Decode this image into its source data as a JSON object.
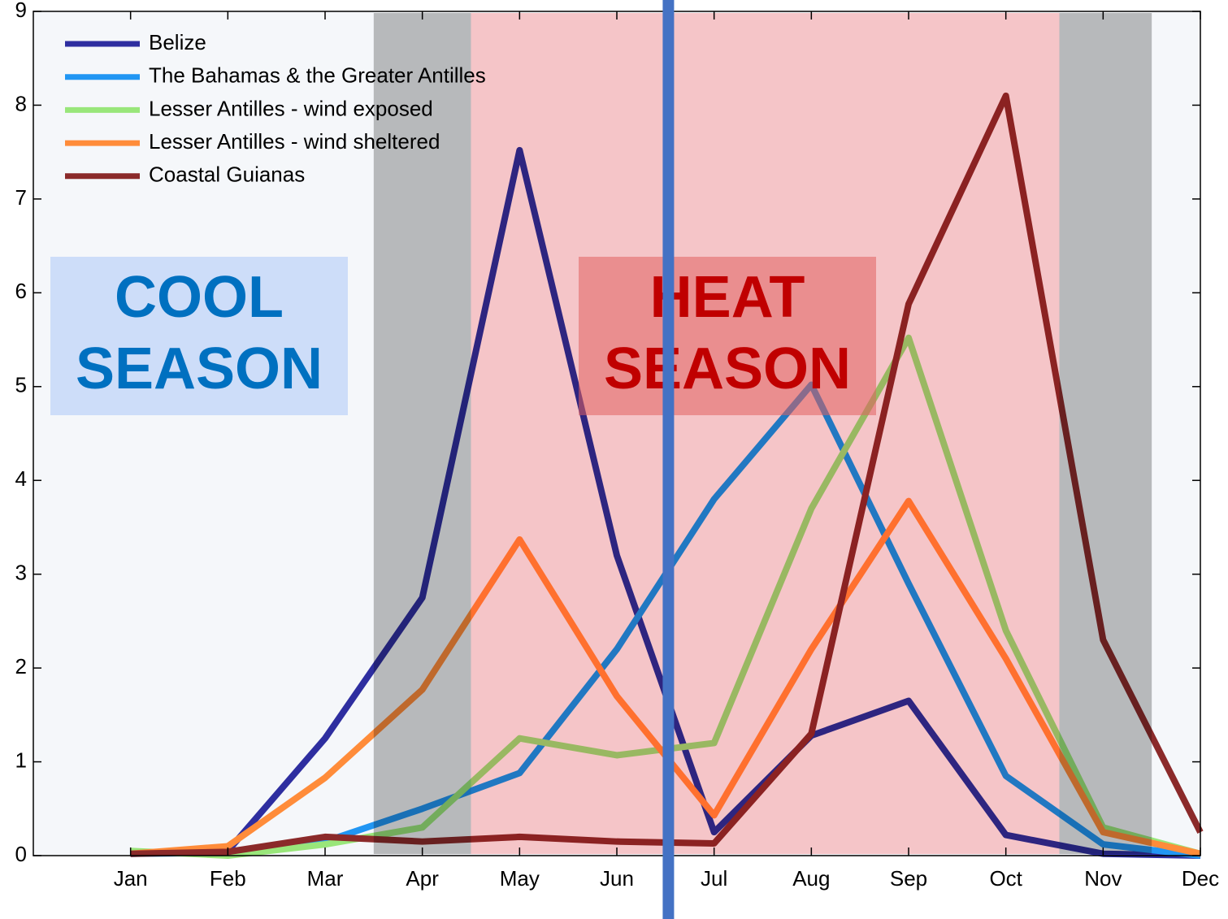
{
  "chart_data": {
    "type": "line",
    "categories": [
      "Jan",
      "Feb",
      "Mar",
      "Apr",
      "May",
      "Jun",
      "Jul",
      "Aug",
      "Sep",
      "Oct",
      "Nov",
      "Dec"
    ],
    "series": [
      {
        "name": "Belize",
        "color": "#2e2ea0",
        "values": [
          0.02,
          0.05,
          1.25,
          2.75,
          7.52,
          3.2,
          0.25,
          1.28,
          1.65,
          0.22,
          0.02,
          0.0
        ]
      },
      {
        "name": "The Bahamas & the Greater Antilles",
        "color": "#2196f3",
        "values": [
          0.02,
          0.03,
          0.15,
          0.5,
          0.88,
          2.2,
          3.8,
          5.02,
          2.9,
          0.85,
          0.12,
          0.0
        ]
      },
      {
        "name": "Lesser Antilles - wind exposed",
        "color": "#99e67a",
        "values": [
          0.05,
          0.0,
          0.12,
          0.3,
          1.25,
          1.07,
          1.2,
          3.7,
          5.52,
          2.4,
          0.3,
          0.02
        ]
      },
      {
        "name": "Lesser Antilles - wind sheltered",
        "color": "#ff8c3a",
        "values": [
          0.02,
          0.1,
          0.83,
          1.77,
          3.37,
          1.7,
          0.43,
          2.2,
          3.78,
          2.1,
          0.25,
          0.02
        ]
      },
      {
        "name": "Coastal Guianas",
        "color": "#8b2a2a",
        "values": [
          0.02,
          0.04,
          0.2,
          0.15,
          0.2,
          0.15,
          0.13,
          1.3,
          5.88,
          8.1,
          2.3,
          0.25
        ]
      }
    ],
    "ylim": [
      0,
      9
    ],
    "yticks": [
      0,
      1,
      2,
      3,
      4,
      5,
      6,
      7,
      8,
      9
    ],
    "grid": false,
    "legend": "upper-left",
    "shaded_periods": [
      {
        "start": 3.5,
        "end": 4.5,
        "color": "#bfbfbf"
      },
      {
        "start": 4.5,
        "end": 10.55,
        "color": "#ffcccc"
      },
      {
        "start": 10.55,
        "end": 11.5,
        "color": "#bfbfbf"
      }
    ],
    "vline": {
      "x": 6.53,
      "color": "#4472c4"
    },
    "annotations": [
      {
        "lines": [
          "COOL",
          "SEASON"
        ],
        "color": "#0070c0",
        "box_color": "#c6d8f8"
      },
      {
        "lines": [
          "HEAT",
          "SEASON"
        ],
        "color": "#c00000",
        "box_color": "#e06060"
      }
    ]
  }
}
